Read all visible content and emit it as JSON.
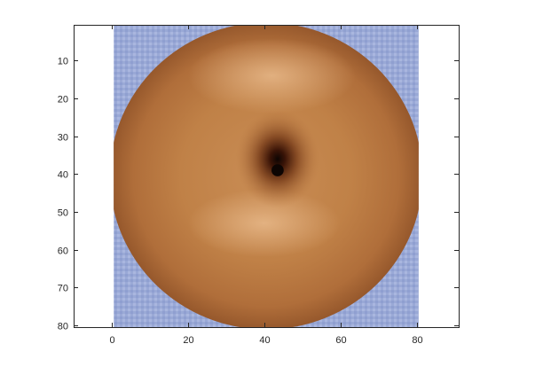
{
  "chart_data": {
    "type": "heatmap",
    "title": "",
    "xlabel": "",
    "ylabel": "",
    "xlim": [
      -10,
      91
    ],
    "ylim": [
      80.5,
      0.5
    ],
    "y_direction": "reverse",
    "axis_equal": true,
    "grid": false,
    "image_extent": {
      "x": [
        0.5,
        80.5
      ],
      "y": [
        0.5,
        80.5
      ]
    },
    "x_ticks": [
      0,
      20,
      40,
      60,
      80
    ],
    "y_ticks": [
      10,
      20,
      30,
      40,
      50,
      60,
      70,
      80
    ],
    "x_tick_labels": [
      "0",
      "20",
      "40",
      "60",
      "80"
    ],
    "y_tick_labels": [
      "10",
      "20",
      "30",
      "40",
      "50",
      "60",
      "70",
      "80"
    ],
    "image_content": {
      "subject": "round fruit seen from the bottom",
      "background_color": "#9aa9d6",
      "fruit_color": "#b8763f",
      "fruit_center": [
        40.5,
        40.5
      ],
      "fruit_radius": 41,
      "dimple_center": [
        43.5,
        39.0
      ],
      "dimple_color": "#0d0503"
    }
  },
  "colors": {
    "axes_edge": "#262626",
    "background": "#ffffff"
  }
}
